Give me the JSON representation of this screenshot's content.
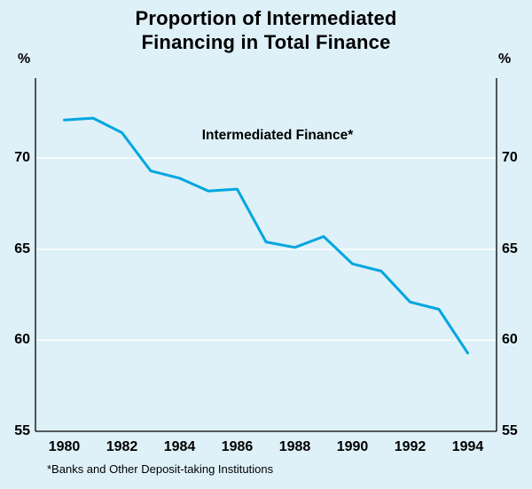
{
  "page": {
    "background": "#def0f8",
    "text_color": "#000000"
  },
  "title": {
    "line1": "Proportion of Intermediated",
    "line2": "Financing in Total Finance"
  },
  "unit_label_left": "%",
  "unit_label_right": "%",
  "series_label": "Intermediated Finance*",
  "footnote": "*Banks and Other Deposit-taking Institutions",
  "chart_data": {
    "type": "line",
    "title": "Proportion of Intermediated Financing in Total Finance",
    "ylabel": "%",
    "x": [
      1980,
      1981,
      1982,
      1983,
      1984,
      1985,
      1986,
      1987,
      1988,
      1989,
      1990,
      1991,
      1992,
      1993,
      1994
    ],
    "series": [
      {
        "name": "Intermediated Finance*",
        "color": "#00a6e0",
        "values": [
          72.1,
          72.2,
          71.4,
          69.3,
          68.9,
          68.2,
          68.3,
          65.4,
          65.1,
          65.7,
          64.2,
          63.8,
          62.1,
          61.7,
          59.3
        ]
      }
    ],
    "xlim": [
      1979,
      1995
    ],
    "ylim": [
      55,
      74.4
    ],
    "xticks": [
      1980,
      1982,
      1984,
      1986,
      1988,
      1990,
      1992,
      1994
    ],
    "yticks": [
      55,
      60,
      65,
      70
    ],
    "grid": "horizontal",
    "gridline_color": "#ffffff",
    "axis_color": "#000000",
    "legend_position": "inline-annotation"
  }
}
